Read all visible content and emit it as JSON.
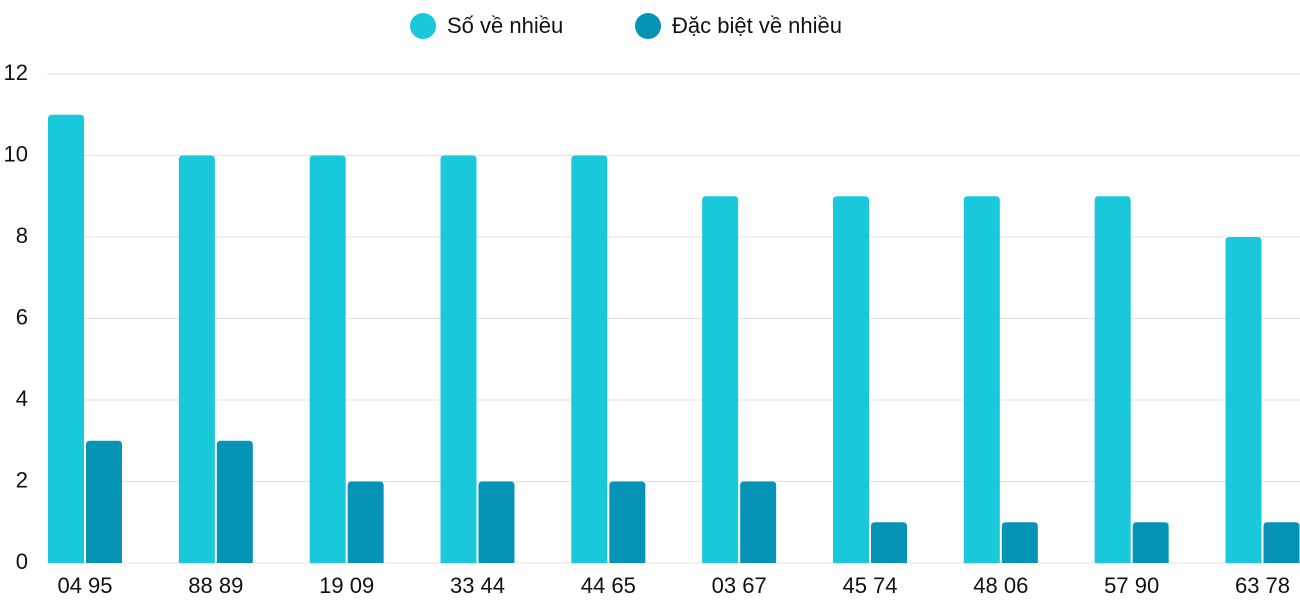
{
  "chart_data": {
    "type": "bar",
    "categories": [
      "04 95",
      "88 89",
      "19 09",
      "33 44",
      "44 65",
      "03 67",
      "45 74",
      "48 06",
      "57 90",
      "63 78"
    ],
    "series": [
      {
        "name": "Số về nhiều",
        "color": "#1ac8db",
        "values": [
          11,
          10,
          10,
          10,
          10,
          9,
          9,
          9,
          9,
          8
        ]
      },
      {
        "name": "Đặc biệt về nhiều",
        "color": "#0694b6",
        "values": [
          3,
          3,
          2,
          2,
          2,
          2,
          1,
          1,
          1,
          1
        ]
      }
    ],
    "ylim": [
      0,
      12
    ],
    "yticks": [
      0,
      2,
      4,
      6,
      8,
      10,
      12
    ],
    "grid": true,
    "legend": "top"
  }
}
